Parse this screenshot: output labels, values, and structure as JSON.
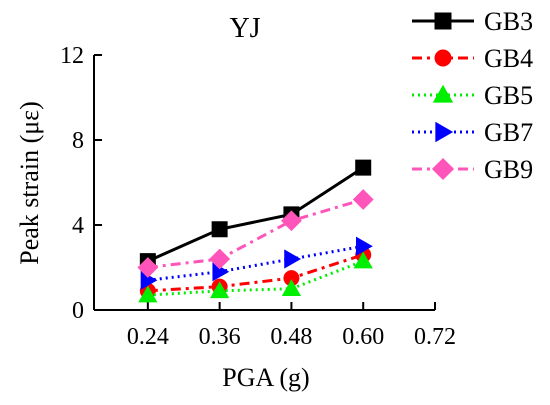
{
  "chart_data": {
    "type": "line",
    "title": "YJ",
    "xlabel": "PGA (g)",
    "ylabel": "Peak strain (με)",
    "x": [
      0.24,
      0.36,
      0.48,
      0.6
    ],
    "xlim": [
      0.15,
      0.72
    ],
    "ylim": [
      0,
      12
    ],
    "xticks": [
      "0.24",
      "0.36",
      "0.48",
      "0.60",
      "0.72"
    ],
    "yticks": [
      "0",
      "4",
      "8",
      "12"
    ],
    "xtick_values": [
      0.24,
      0.36,
      0.48,
      0.6,
      0.72
    ],
    "ytick_values": [
      0,
      4,
      8,
      12
    ],
    "grid": false,
    "legend_position": "right",
    "series": [
      {
        "name": "GB3",
        "values": [
          2.3,
          3.8,
          4.5,
          6.7
        ],
        "color": "#000000",
        "marker": "square",
        "line_style": "solid"
      },
      {
        "name": "GB4",
        "values": [
          0.9,
          1.1,
          1.5,
          2.6
        ],
        "color": "#ff0000",
        "marker": "circle",
        "line_style": "dash-dot"
      },
      {
        "name": "GB5",
        "values": [
          0.7,
          0.9,
          1.0,
          2.3
        ],
        "color": "#00ee00",
        "marker": "triangle-up",
        "line_style": "dotted"
      },
      {
        "name": "GB7",
        "values": [
          1.4,
          1.8,
          2.4,
          3.0
        ],
        "color": "#0000ff",
        "marker": "triangle-right",
        "line_style": "dotted"
      },
      {
        "name": "GB9",
        "values": [
          2.0,
          2.4,
          4.2,
          5.2
        ],
        "color": "#ff55bb",
        "marker": "diamond",
        "line_style": "dash-dot"
      }
    ]
  }
}
